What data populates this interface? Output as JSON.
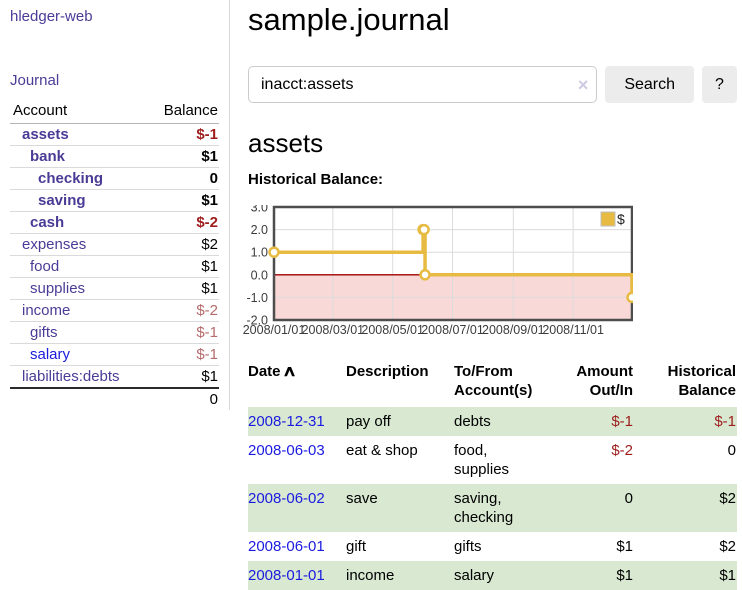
{
  "app": {
    "brand": "hledger-web"
  },
  "sidebar": {
    "nav_journal": "Journal",
    "accounts_header": [
      "Account",
      "Balance"
    ],
    "accounts": [
      {
        "name": "assets",
        "indent": 1,
        "bold": true,
        "color": "purple",
        "balance": "$-1",
        "balance_style": "neg"
      },
      {
        "name": "bank",
        "indent": 2,
        "bold": true,
        "color": "purple",
        "balance": "$1",
        "balance_style": "pos"
      },
      {
        "name": "checking",
        "indent": 3,
        "bold": true,
        "color": "purple",
        "balance": "0",
        "balance_style": "pos"
      },
      {
        "name": "saving",
        "indent": 3,
        "bold": true,
        "color": "purple",
        "balance": "$1",
        "balance_style": "pos"
      },
      {
        "name": "cash",
        "indent": 2,
        "bold": true,
        "color": "purple",
        "balance": "$-2",
        "balance_style": "neg"
      },
      {
        "name": "expenses",
        "indent": 1,
        "bold": false,
        "color": "purple",
        "balance": "$2",
        "balance_style": "pos"
      },
      {
        "name": "food",
        "indent": 2,
        "bold": false,
        "color": "purple",
        "balance": "$1",
        "balance_style": "pos"
      },
      {
        "name": "supplies",
        "indent": 2,
        "bold": false,
        "color": "purple",
        "balance": "$1",
        "balance_style": "pos"
      },
      {
        "name": "income",
        "indent": 1,
        "bold": false,
        "color": "purple",
        "balance": "$-2",
        "balance_style": "dimneg"
      },
      {
        "name": "gifts",
        "indent": 2,
        "bold": false,
        "color": "purple",
        "balance": "$-1",
        "balance_style": "dimneg"
      },
      {
        "name": "salary",
        "indent": 2,
        "bold": false,
        "color": "blue",
        "balance": "$-1",
        "balance_style": "dimneg"
      },
      {
        "name": "liabilities:debts",
        "indent": 1,
        "bold": false,
        "color": "purple",
        "balance": "$1",
        "balance_style": "pos"
      }
    ],
    "total": "0"
  },
  "main": {
    "title": "sample.journal",
    "search": {
      "value": "inacct:assets",
      "button": "Search",
      "help": "?",
      "clear_icon": "×"
    },
    "account": "assets",
    "chart_label": "Historical Balance:"
  },
  "register": {
    "headers": [
      "Date",
      "Description",
      "To/From Account(s)",
      "Amount Out/In",
      "Historical Balance"
    ],
    "sort_icon": "∧",
    "rows": [
      {
        "date": "2008-12-31",
        "description": "pay off",
        "accounts": "debts",
        "amount": "$-1",
        "balance": "$-1",
        "shaded": true
      },
      {
        "date": "2008-06-03",
        "description": "eat & shop",
        "accounts": "food, supplies",
        "amount": "$-2",
        "balance": "0",
        "shaded": false
      },
      {
        "date": "2008-06-02",
        "description": "save",
        "accounts": "saving, checking",
        "amount": "0",
        "balance": "$2",
        "shaded": true
      },
      {
        "date": "2008-06-01",
        "description": "gift",
        "accounts": "gifts",
        "amount": "$1",
        "balance": "$2",
        "shaded": false
      },
      {
        "date": "2008-01-01",
        "description": "income",
        "accounts": "salary",
        "amount": "$1",
        "balance": "$1",
        "shaded": true
      }
    ]
  },
  "chart_data": {
    "type": "line",
    "title": "Historical Balance",
    "step": true,
    "series": [
      {
        "name": "$",
        "color": "#e7ba41",
        "points": [
          [
            "2008-01-01",
            1
          ],
          [
            "2008-06-01",
            2
          ],
          [
            "2008-06-02",
            2
          ],
          [
            "2008-06-03",
            0
          ],
          [
            "2008-12-31",
            -1
          ]
        ]
      }
    ],
    "x_range": [
      "2008-01-01",
      "2008-12-31"
    ],
    "x_ticks": [
      "2008/01/01",
      "2008/03/01",
      "2008/05/01",
      "2008/07/01",
      "2008/09/01",
      "2008/11/01"
    ],
    "ylim": [
      -2,
      3
    ],
    "y_ticks": [
      "3.0",
      "2.0",
      "1.0",
      "0.0",
      "-1.0",
      "-2.0"
    ],
    "grid": true,
    "legend_position": "top-right",
    "negative_region_color": "#f9d8d8",
    "zero_line_color": "#a00000"
  },
  "colors": {
    "link_purple": "#4a3c96",
    "link_blue": "#1b1bdf",
    "negative_red": "#9d1d1d",
    "muted_negative": "#b56b6b",
    "row_stripe_green": "#d8e8d1",
    "chart_gold": "#e7ba41",
    "chart_negative_bg": "#f9d8d8",
    "chart_zero_line": "#a00000",
    "chart_border": "#4d4d4d"
  }
}
